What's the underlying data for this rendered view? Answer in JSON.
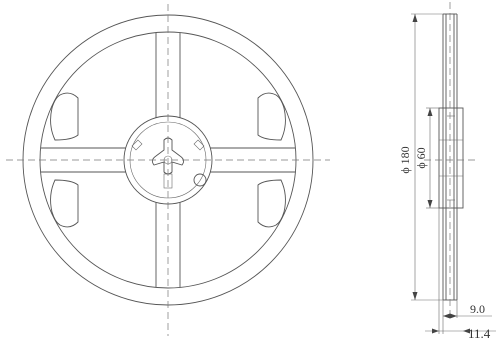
{
  "drawing": {
    "front_view": "reel-front-view",
    "side_view": "reel-side-view"
  },
  "dimensions": {
    "outer_diameter": "180",
    "hub_diameter": "60",
    "diameter_symbol": "ϕ",
    "inner_width": "9.0",
    "outer_width": "11.4"
  }
}
